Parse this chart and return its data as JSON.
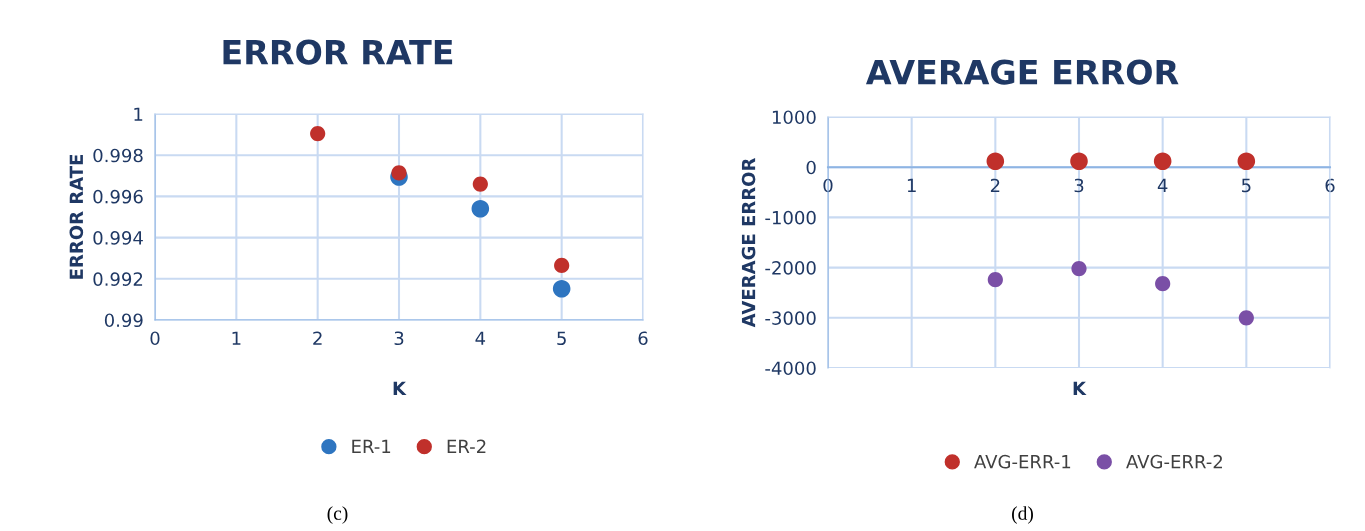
{
  "chart_data": [
    {
      "type": "scatter",
      "title": "ERROR RATE",
      "xlabel": "K",
      "ylabel": "ERROR RATE",
      "x": [
        2,
        3,
        4,
        5
      ],
      "series": [
        {
          "name": "ER-1",
          "color": "#2e75c0",
          "values": [
            null,
            0.99694,
            0.9954,
            0.99152
          ]
        },
        {
          "name": "ER-2",
          "color": "#c0302b",
          "values": [
            0.99905,
            0.99714,
            0.9966,
            0.99265
          ]
        }
      ],
      "xlim": [
        0,
        6
      ],
      "xticks": [
        0,
        1,
        2,
        3,
        4,
        5,
        6
      ],
      "ylim": [
        0.99,
        1
      ],
      "yticks": [
        0.99,
        0.992,
        0.994,
        0.996,
        0.998,
        1
      ],
      "grid": true,
      "legend": "bottom",
      "marker": "circle",
      "annotations": [
        "(c)"
      ]
    },
    {
      "type": "scatter",
      "title": "AVERAGE ERROR",
      "xlabel": "K",
      "ylabel": "AVERAGE ERROR",
      "x": [
        2,
        3,
        4,
        5
      ],
      "series": [
        {
          "name": "AVG-ERR-1",
          "color": "#c0302b",
          "values": [
            120,
            120,
            120,
            120
          ]
        },
        {
          "name": "AVG-ERR-2",
          "color": "#7a4fa6",
          "values": [
            -2240,
            -2020,
            -2320,
            -3000
          ]
        }
      ],
      "xlim": [
        0,
        6
      ],
      "xticks": [
        0,
        1,
        2,
        3,
        4,
        5,
        6
      ],
      "ylim": [
        -4000,
        1000
      ],
      "yticks": [
        -4000,
        -3000,
        -2000,
        -1000,
        0,
        1000
      ],
      "grid": true,
      "legend": "bottom",
      "marker": "circle",
      "annotations": [
        "(d)"
      ]
    }
  ]
}
